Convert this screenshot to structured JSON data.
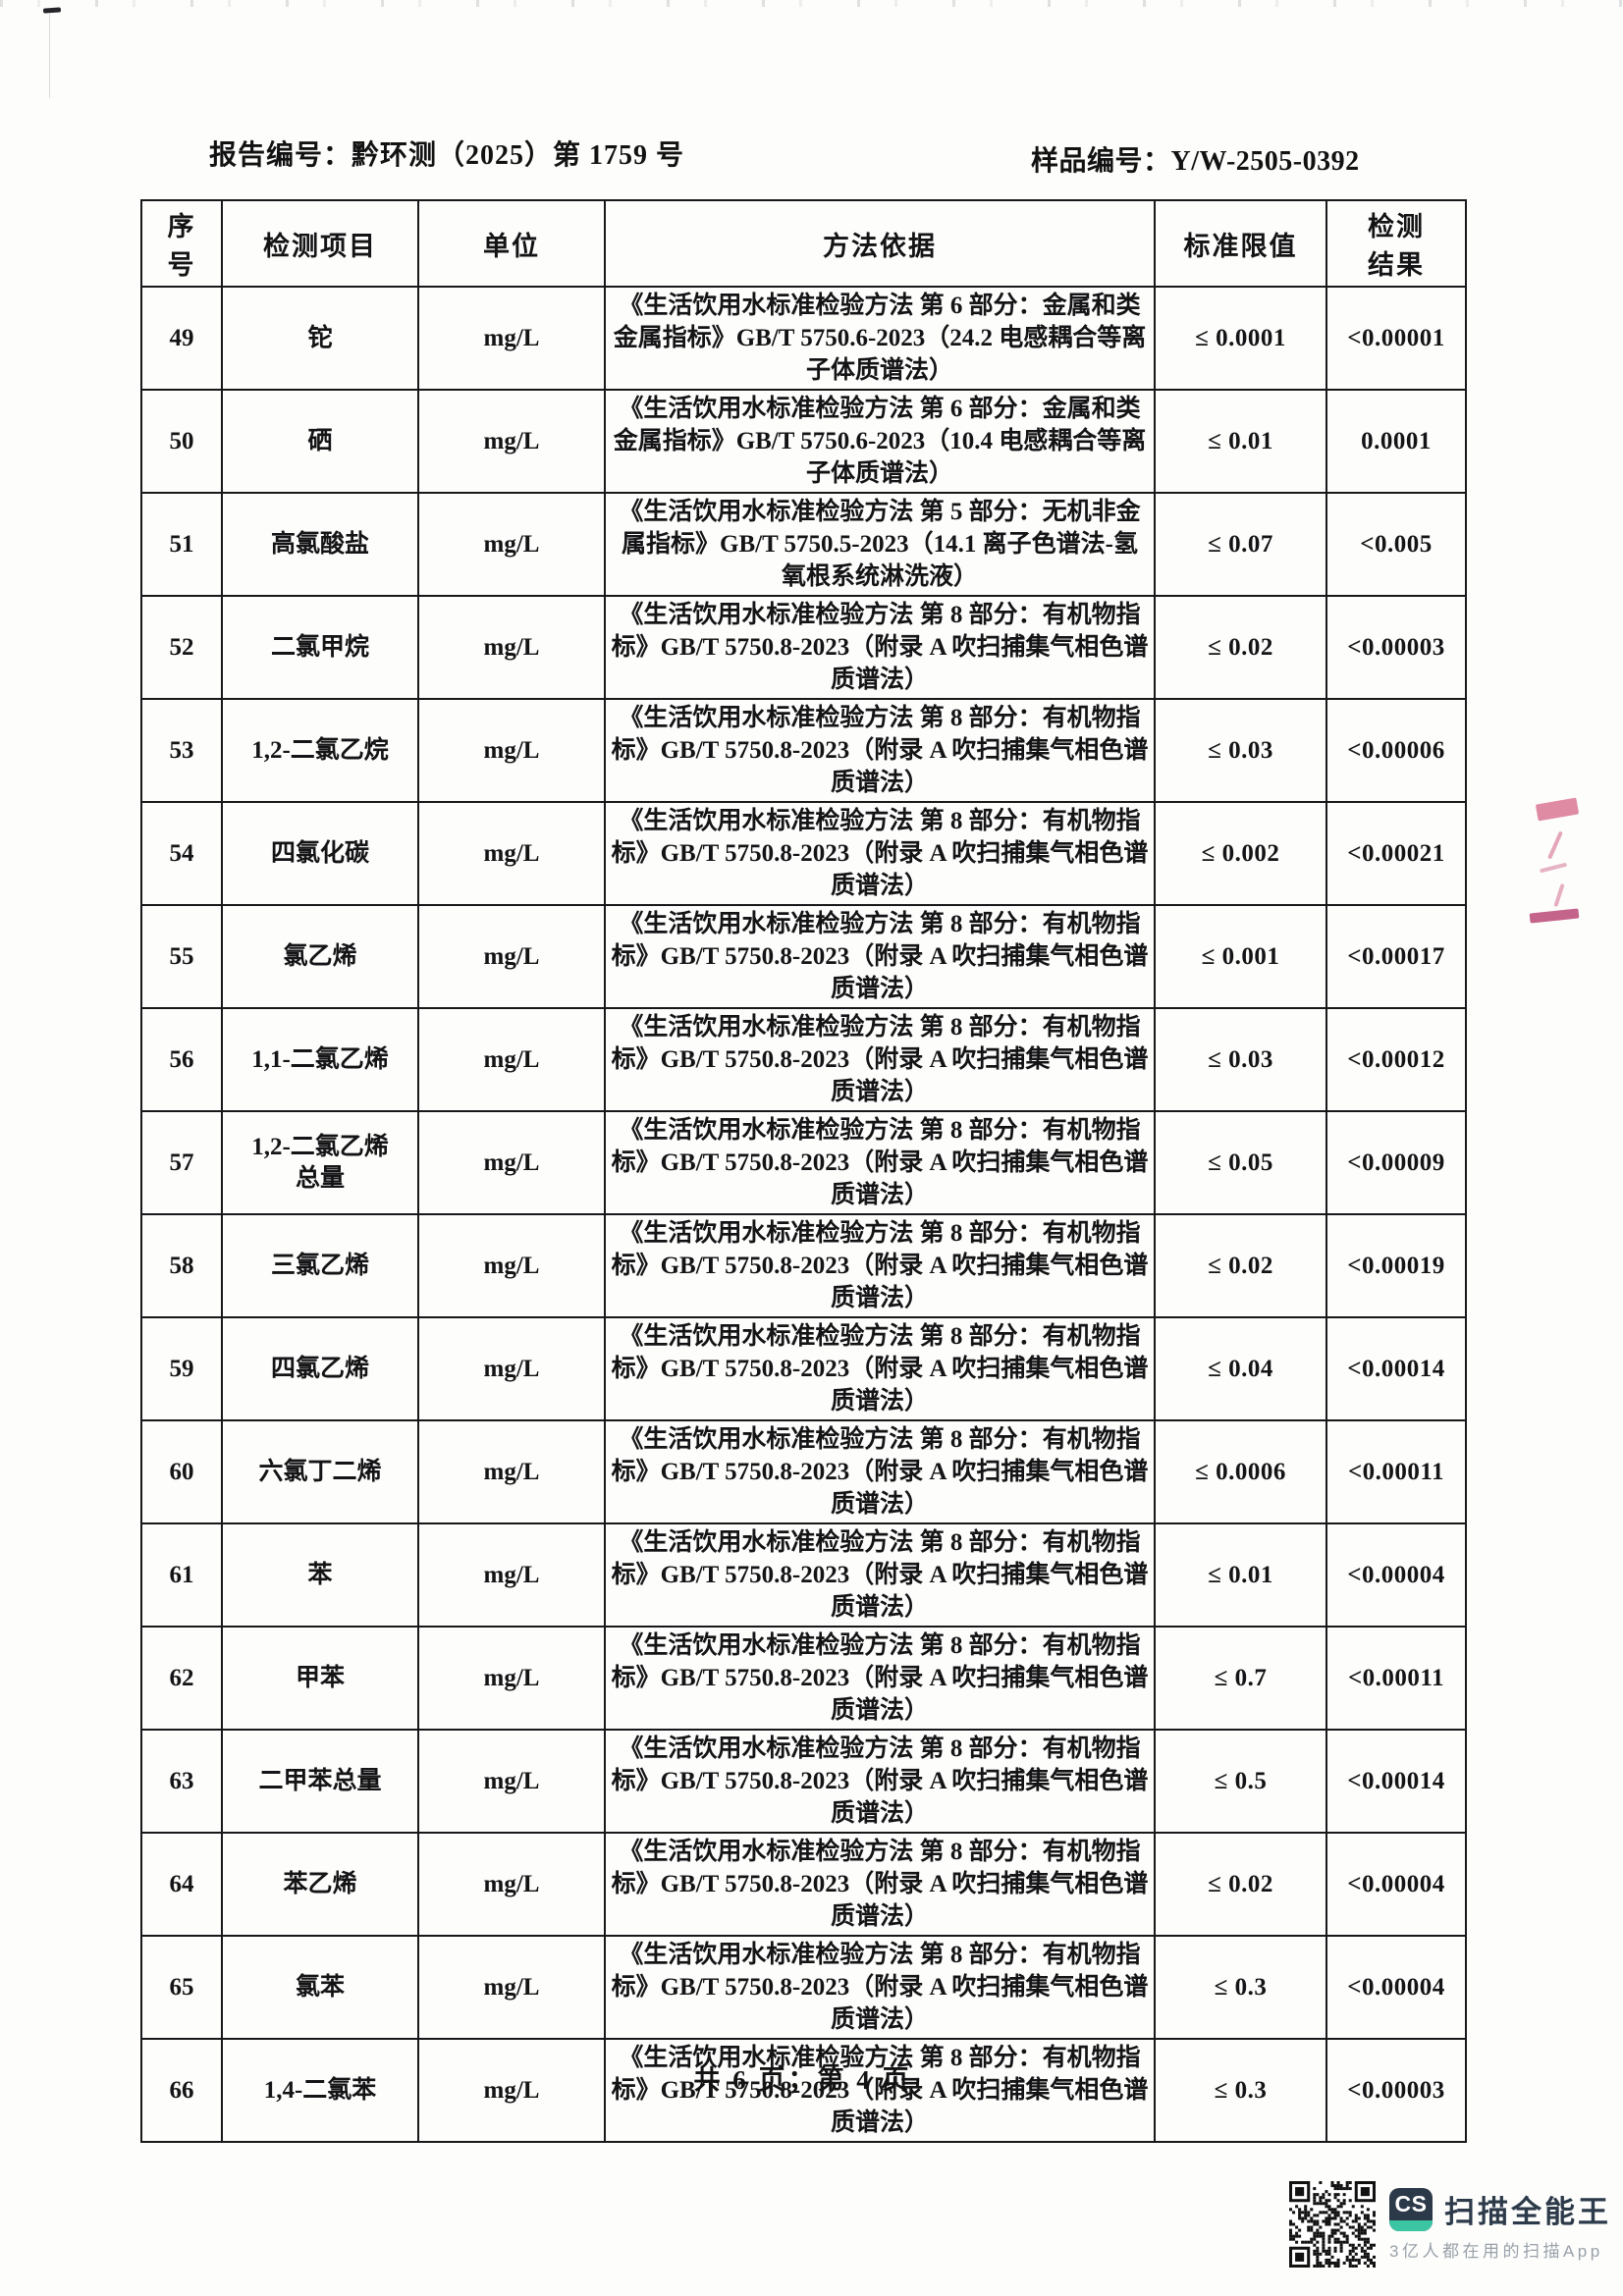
{
  "header": {
    "report_no": "报告编号：黔环测（2025）第 1759 号",
    "sample_no": "样品编号：Y/W-2505-0392"
  },
  "table": {
    "headers": {
      "no": "序\n号",
      "item": "检测项目",
      "unit": "单位",
      "method": "方法依据",
      "limit": "标准限值",
      "result": "检测\n结果"
    },
    "rows": [
      {
        "no": "49",
        "item": "铊",
        "unit": "mg/L",
        "method": "《生活饮用水标准检验方法 第 6 部分：金属和类金属指标》GB/T 5750.6-2023（24.2 电感耦合等离子体质谱法）",
        "limit": "≤ 0.0001",
        "result": "<0.00001"
      },
      {
        "no": "50",
        "item": "硒",
        "unit": "mg/L",
        "method": "《生活饮用水标准检验方法 第 6 部分：金属和类金属指标》GB/T 5750.6-2023（10.4 电感耦合等离子体质谱法）",
        "limit": "≤ 0.01",
        "result": "0.0001"
      },
      {
        "no": "51",
        "item": "高氯酸盐",
        "unit": "mg/L",
        "method": "《生活饮用水标准检验方法 第 5 部分：无机非金属指标》GB/T 5750.5-2023（14.1 离子色谱法-氢氧根系统淋洗液）",
        "limit": "≤ 0.07",
        "result": "<0.005"
      },
      {
        "no": "52",
        "item": "二氯甲烷",
        "unit": "mg/L",
        "method": "《生活饮用水标准检验方法 第 8 部分：有机物指标》GB/T 5750.8-2023（附录 A 吹扫捕集气相色谱质谱法）",
        "limit": "≤ 0.02",
        "result": "<0.00003"
      },
      {
        "no": "53",
        "item": "1,2-二氯乙烷",
        "unit": "mg/L",
        "method": "《生活饮用水标准检验方法 第 8 部分：有机物指标》GB/T 5750.8-2023（附录 A 吹扫捕集气相色谱质谱法）",
        "limit": "≤ 0.03",
        "result": "<0.00006"
      },
      {
        "no": "54",
        "item": "四氯化碳",
        "unit": "mg/L",
        "method": "《生活饮用水标准检验方法 第 8 部分：有机物指标》GB/T 5750.8-2023（附录 A 吹扫捕集气相色谱质谱法）",
        "limit": "≤ 0.002",
        "result": "<0.00021"
      },
      {
        "no": "55",
        "item": "氯乙烯",
        "unit": "mg/L",
        "method": "《生活饮用水标准检验方法 第 8 部分：有机物指标》GB/T 5750.8-2023（附录 A 吹扫捕集气相色谱质谱法）",
        "limit": "≤ 0.001",
        "result": "<0.00017"
      },
      {
        "no": "56",
        "item": "1,1-二氯乙烯",
        "unit": "mg/L",
        "method": "《生活饮用水标准检验方法 第 8 部分：有机物指标》GB/T 5750.8-2023（附录 A 吹扫捕集气相色谱质谱法）",
        "limit": "≤ 0.03",
        "result": "<0.00012"
      },
      {
        "no": "57",
        "item": "1,2-二氯乙烯\n总量",
        "unit": "mg/L",
        "method": "《生活饮用水标准检验方法 第 8 部分：有机物指标》GB/T 5750.8-2023（附录 A 吹扫捕集气相色谱质谱法）",
        "limit": "≤ 0.05",
        "result": "<0.00009"
      },
      {
        "no": "58",
        "item": "三氯乙烯",
        "unit": "mg/L",
        "method": "《生活饮用水标准检验方法 第 8 部分：有机物指标》GB/T 5750.8-2023（附录 A 吹扫捕集气相色谱质谱法）",
        "limit": "≤ 0.02",
        "result": "<0.00019"
      },
      {
        "no": "59",
        "item": "四氯乙烯",
        "unit": "mg/L",
        "method": "《生活饮用水标准检验方法 第 8 部分：有机物指标》GB/T 5750.8-2023（附录 A 吹扫捕集气相色谱质谱法）",
        "limit": "≤ 0.04",
        "result": "<0.00014"
      },
      {
        "no": "60",
        "item": "六氯丁二烯",
        "unit": "mg/L",
        "method": "《生活饮用水标准检验方法 第 8 部分：有机物指标》GB/T 5750.8-2023（附录 A 吹扫捕集气相色谱质谱法）",
        "limit": "≤ 0.0006",
        "result": "<0.00011"
      },
      {
        "no": "61",
        "item": "苯",
        "unit": "mg/L",
        "method": "《生活饮用水标准检验方法 第 8 部分：有机物指标》GB/T 5750.8-2023（附录 A 吹扫捕集气相色谱质谱法）",
        "limit": "≤ 0.01",
        "result": "<0.00004"
      },
      {
        "no": "62",
        "item": "甲苯",
        "unit": "mg/L",
        "method": "《生活饮用水标准检验方法 第 8 部分：有机物指标》GB/T 5750.8-2023（附录 A 吹扫捕集气相色谱质谱法）",
        "limit": "≤ 0.7",
        "result": "<0.00011"
      },
      {
        "no": "63",
        "item": "二甲苯总量",
        "unit": "mg/L",
        "method": "《生活饮用水标准检验方法 第 8 部分：有机物指标》GB/T 5750.8-2023（附录 A 吹扫捕集气相色谱质谱法）",
        "limit": "≤ 0.5",
        "result": "<0.00014"
      },
      {
        "no": "64",
        "item": "苯乙烯",
        "unit": "mg/L",
        "method": "《生活饮用水标准检验方法 第 8 部分：有机物指标》GB/T 5750.8-2023（附录 A 吹扫捕集气相色谱质谱法）",
        "limit": "≤ 0.02",
        "result": "<0.00004"
      },
      {
        "no": "65",
        "item": "氯苯",
        "unit": "mg/L",
        "method": "《生活饮用水标准检验方法 第 8 部分：有机物指标》GB/T 5750.8-2023（附录 A 吹扫捕集气相色谱质谱法）",
        "limit": "≤ 0.3",
        "result": "<0.00004"
      },
      {
        "no": "66",
        "item": "1,4-二氯苯",
        "unit": "mg/L",
        "method": "《生活饮用水标准检验方法 第 8 部分：有机物指标》GB/T 5750.8-2023（附录 A 吹扫捕集气相色谱质谱法）",
        "limit": "≤ 0.3",
        "result": "<0.00003"
      }
    ]
  },
  "footer": {
    "page_indicator": "共 6 页；第 4 页"
  },
  "watermark": {
    "logo_text": "CS",
    "app_name": "扫描全能王",
    "tagline": "3亿人都在用的扫描App",
    "colors": {
      "navy": "#2b3949",
      "teal": "#3cc5a3",
      "tagline_gray": "#99a1a9"
    }
  }
}
